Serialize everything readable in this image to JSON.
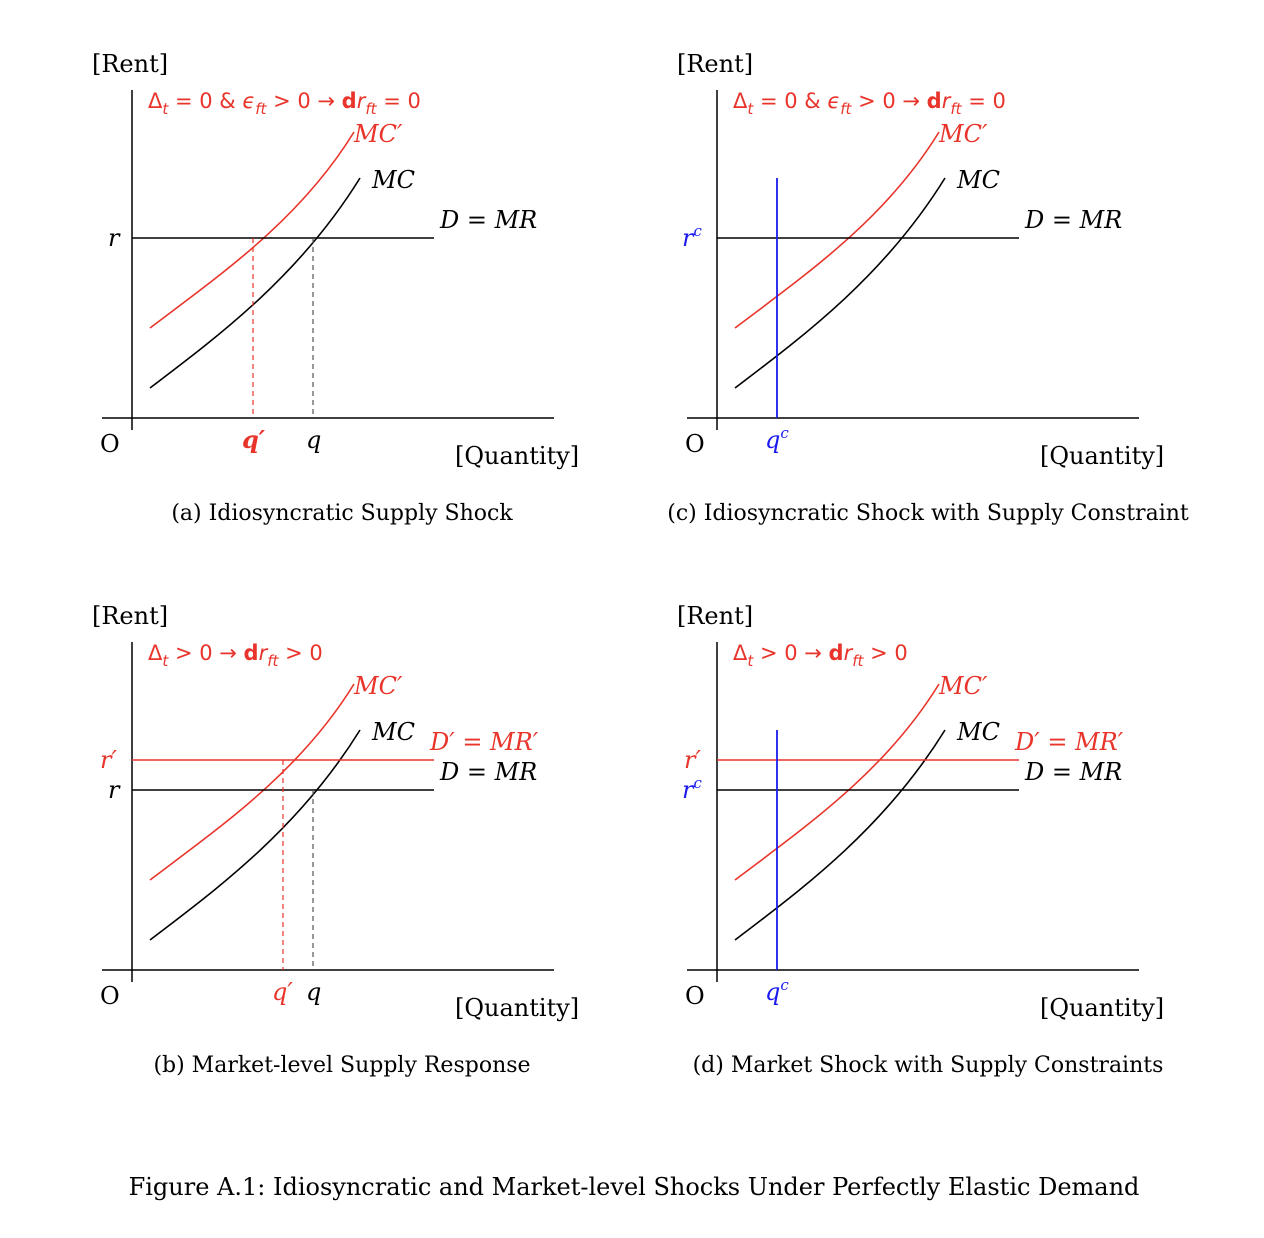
{
  "colors": {
    "black": "#000000",
    "red": "#e8342a",
    "blue": "#1a1aee",
    "dashed_gray": "#555555"
  },
  "axis_labels": {
    "y": "[Rent]",
    "x": "[Quantity]",
    "origin": "O"
  },
  "panels": {
    "a": {
      "caption": "(a) Idiosyncratic Supply Shock",
      "condition": {
        "delta": "Δ",
        "delta_sub": "t",
        "rest1": " = 0 & ",
        "eps": "ϵ",
        "eps_sub": "ft",
        "rest2": " > 0 → ",
        "d": "d",
        "r": "r",
        "r_sub": "ft",
        "rest3": " = 0"
      },
      "curves": {
        "mc_prime": "MC′",
        "mc": "MC",
        "demand": "D = MR"
      },
      "y_ticks": {
        "r": "r"
      },
      "x_ticks": {
        "q_prime": "q′",
        "q": "q"
      }
    },
    "c": {
      "caption": "(c) Idiosyncratic Shock with Supply Constraint",
      "condition": {
        "delta": "Δ",
        "delta_sub": "t",
        "rest1": " = 0 & ",
        "eps": "ϵ",
        "eps_sub": "ft",
        "rest2": " > 0 → ",
        "d": "d",
        "r": "r",
        "r_sub": "ft",
        "rest3": " = 0"
      },
      "curves": {
        "mc_prime": "MC′",
        "mc": "MC",
        "demand": "D = MR"
      },
      "y_ticks": {
        "rc": "r",
        "rc_sup": "c"
      },
      "x_ticks": {
        "qc": "q",
        "qc_sup": "c"
      }
    },
    "b": {
      "caption": "(b) Market-level Supply Response",
      "condition": {
        "delta": "Δ",
        "delta_sub": "t",
        "rest1": " > 0 → ",
        "d": "d",
        "r": "r",
        "r_sub": "ft",
        "rest3": " > 0"
      },
      "curves": {
        "mc_prime": "MC′",
        "mc": "MC",
        "demand_prime": "D′ = MR′",
        "demand": "D = MR"
      },
      "y_ticks": {
        "r_prime": "r′",
        "r": "r"
      },
      "x_ticks": {
        "q_prime": "q′",
        "q": "q"
      }
    },
    "d": {
      "caption": "(d) Market Shock with Supply Constraints",
      "condition": {
        "delta": "Δ",
        "delta_sub": "t",
        "rest1": " > 0 → ",
        "d": "d",
        "r": "r",
        "r_sub": "ft",
        "rest3": " > 0"
      },
      "curves": {
        "mc_prime": "MC′",
        "mc": "MC",
        "demand_prime": "D′ = MR′",
        "demand": "D = MR"
      },
      "y_ticks": {
        "r_prime": "r′",
        "rc": "r",
        "rc_sup": "c"
      },
      "x_ticks": {
        "qc": "q",
        "qc_sup": "c"
      }
    }
  },
  "figure_caption": "Figure A.1: Idiosyncratic and Market-level Shocks Under Perfectly Elastic Demand"
}
